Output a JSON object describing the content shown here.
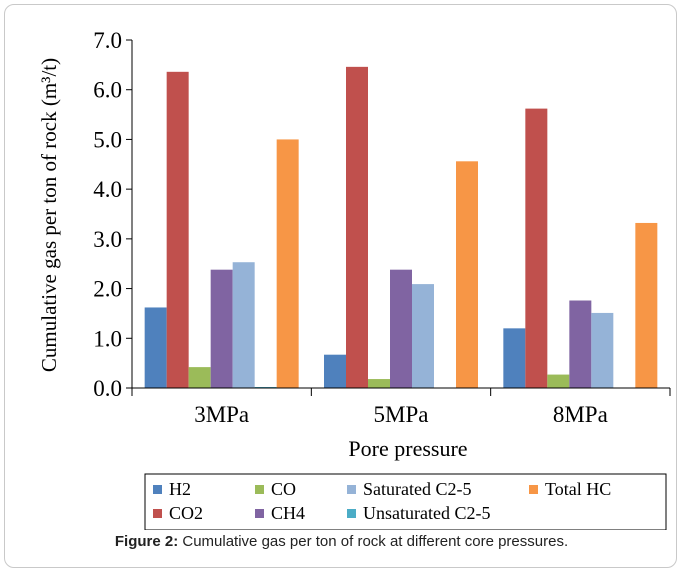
{
  "chart_data": {
    "type": "bar",
    "ylabel": "Cumulative gas per ton of rock (m³/t)",
    "xlabel": "Pore pressure",
    "categories": [
      "3MPa",
      "5MPa",
      "8MPa"
    ],
    "ylim": [
      0,
      7
    ],
    "yticks": [
      "0.0",
      "1.0",
      "2.0",
      "3.0",
      "4.0",
      "5.0",
      "6.0",
      "7.0"
    ],
    "grid": false,
    "legend_position": "bottom",
    "series": [
      {
        "name": "H2",
        "color": "#4f81bd",
        "values": [
          1.62,
          0.67,
          1.2
        ]
      },
      {
        "name": "CO2",
        "color": "#c0504d",
        "values": [
          6.36,
          6.46,
          5.62
        ]
      },
      {
        "name": "CO",
        "color": "#9bbb59",
        "values": [
          0.42,
          0.18,
          0.27
        ]
      },
      {
        "name": "CH4",
        "color": "#8064a2",
        "values": [
          2.38,
          2.38,
          1.76
        ]
      },
      {
        "name": "Saturated C2-5",
        "color": "#95b3d7",
        "values": [
          2.53,
          2.09,
          1.51
        ]
      },
      {
        "name": "Unsaturated C2-5",
        "color": "#4bacc6",
        "values": [
          0.02,
          0.0,
          0.0
        ]
      },
      {
        "name": "Total HC",
        "color": "#f79646",
        "values": [
          5.0,
          4.56,
          3.32
        ]
      }
    ]
  },
  "caption": {
    "label": "Figure 2:",
    "text": " Cumulative gas per ton of rock at different core pressures."
  }
}
